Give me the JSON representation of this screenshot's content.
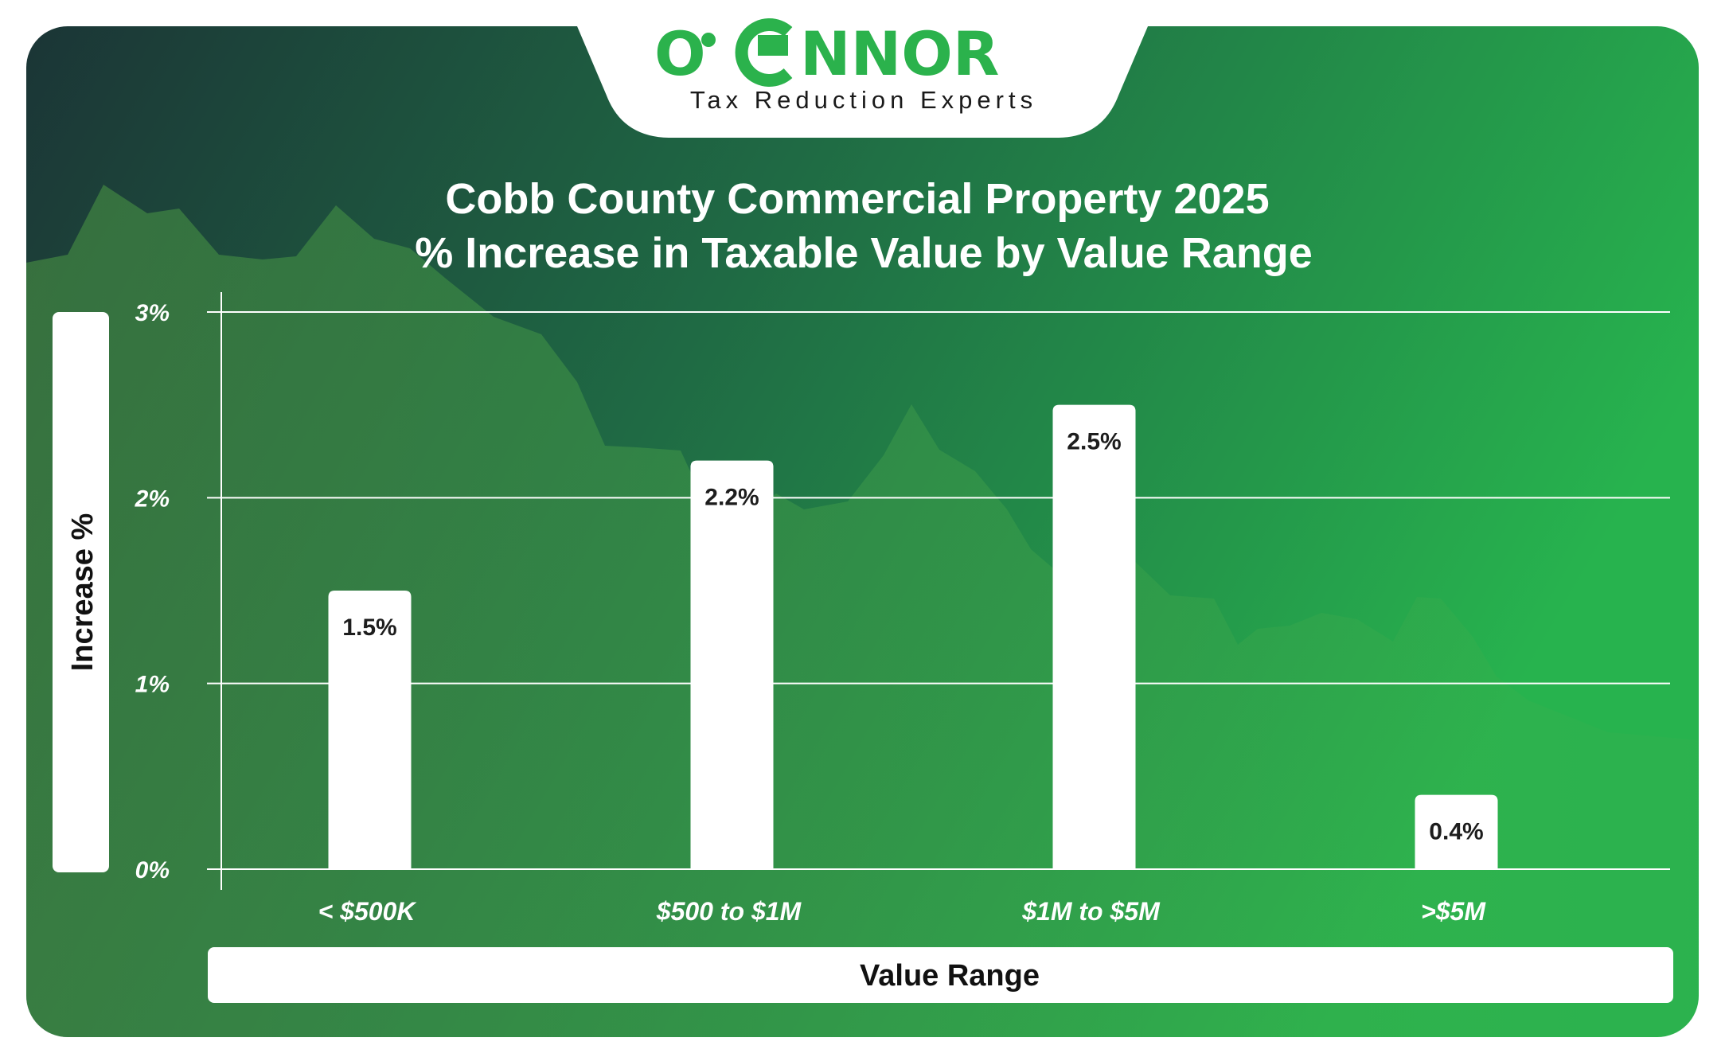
{
  "brand": {
    "name_left": "O",
    "name_right": "NNOR",
    "tagline": "Tax Reduction Experts"
  },
  "colors": {
    "bg_dark": "#1c3536",
    "bg_mid": "#1e6a43",
    "bg_light": "#27b24e",
    "brand_green": "#2bb24c",
    "bar": "#ffffff",
    "gridline": "#ffffff"
  },
  "chart_data": {
    "type": "bar",
    "title": "Cobb County Commercial Property 2025",
    "subtitle": "% Increase in Taxable Value by Value Range",
    "xlabel": "Value Range",
    "ylabel": "Increase %",
    "categories": [
      "< $500K",
      "$500 to $1M",
      "$1M to $5M",
      ">$5M"
    ],
    "values": [
      1.5,
      2.2,
      2.5,
      0.4
    ],
    "value_labels": [
      "1.5%",
      "2.2%",
      "2.5%",
      "0.4%"
    ],
    "ylim": [
      0,
      3
    ],
    "yticks": [
      {
        "value": 0,
        "label": "0%"
      },
      {
        "value": 1,
        "label": "1%"
      },
      {
        "value": 2,
        "label": "2%"
      },
      {
        "value": 3,
        "label": "3%"
      }
    ],
    "grid": true
  }
}
